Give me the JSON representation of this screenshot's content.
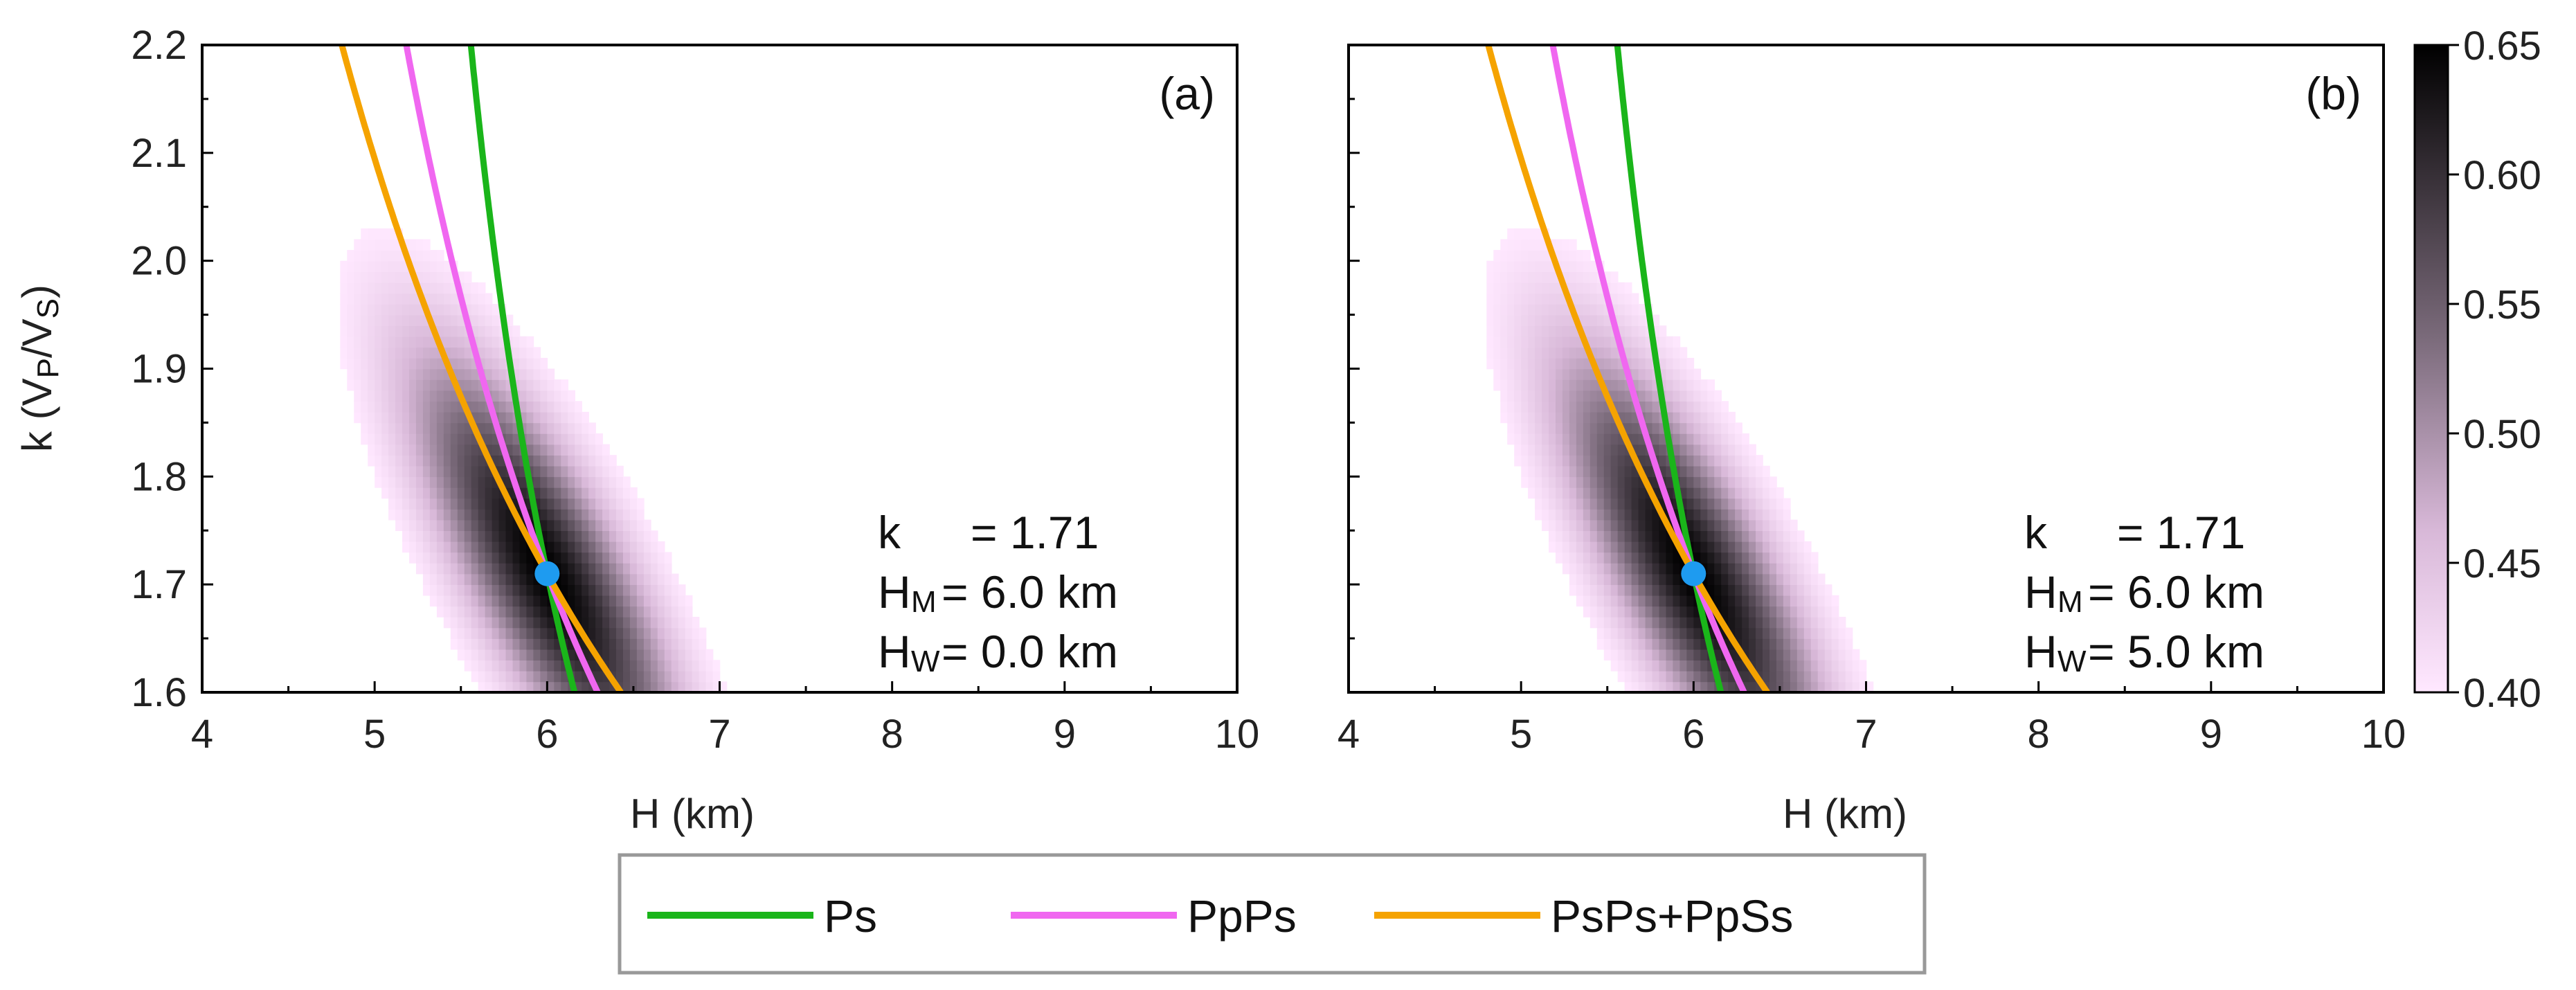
{
  "chart_data": {
    "type": "heatmap",
    "legend": {
      "position": "bottom-center",
      "entries": [
        {
          "label": "Ps",
          "color": "#1ab51a"
        },
        {
          "label": "PpPs",
          "color": "#f067f0"
        },
        {
          "label": "PsPs+PpSs",
          "color": "#f5a300"
        }
      ]
    },
    "colorbar": {
      "ticks": [
        "0.65",
        "0.60",
        "0.55",
        "0.50",
        "0.45",
        "0.40"
      ],
      "range": [
        0.4,
        0.65
      ],
      "colors": [
        "#ffe8ff",
        "#000000"
      ]
    },
    "panels": [
      {
        "label": "(a)",
        "xlabel": "H (km)",
        "ylabel_main": "k (V",
        "ylabel_sub1": "P",
        "ylabel_mid": "/V",
        "ylabel_sub2": "S",
        "ylabel_end": ")",
        "xlim": [
          4,
          10
        ],
        "ylim": [
          1.6,
          2.2
        ],
        "xticks": [
          "4",
          "5",
          "6",
          "7",
          "8",
          "9",
          "10"
        ],
        "yticks": [
          "1.6",
          "1.7",
          "1.8",
          "1.9",
          "2.0",
          "2.1",
          "2.2"
        ],
        "best": {
          "H": 6.0,
          "k": 1.71
        },
        "annotations": {
          "k_label": "k",
          "k_value": "= 1.71",
          "hm_label": "H",
          "hm_sub": "M",
          "hm_value": "= 6.0  km",
          "hw_label": "H",
          "hw_sub": "W",
          "hw_value": "= 0.0  km"
        }
      },
      {
        "label": "(b)",
        "xlabel": "H (km)",
        "xlim": [
          4,
          10
        ],
        "ylim": [
          1.6,
          2.2
        ],
        "xticks": [
          "4",
          "5",
          "6",
          "7",
          "8",
          "9",
          "10"
        ],
        "yticks": [],
        "best": {
          "H": 6.0,
          "k": 1.71
        },
        "annotations": {
          "k_label": "k",
          "k_value": "= 1.71",
          "hm_label": "H",
          "hm_sub": "M",
          "hm_value": "= 6.0  km",
          "hw_label": "H",
          "hw_sub": "W",
          "hw_value": "= 5.0  km"
        }
      }
    ]
  }
}
